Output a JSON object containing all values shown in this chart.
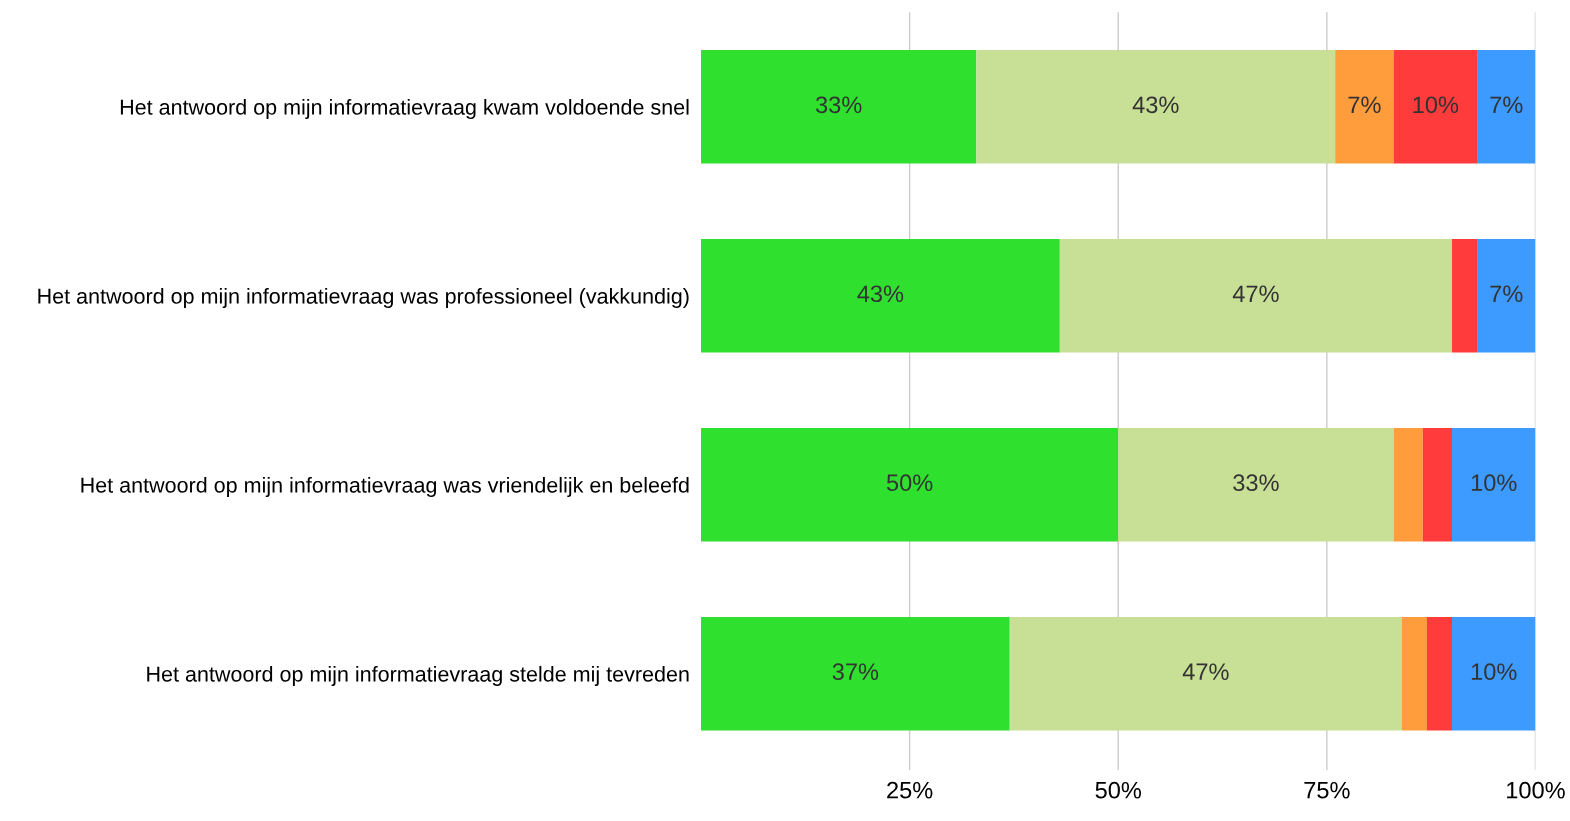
{
  "chart_data": {
    "type": "bar",
    "orientation": "horizontal",
    "stacked": true,
    "categories": [
      "Het antwoord op mijn informatievraag kwam voldoende snel",
      "Het antwoord op mijn informatievraag was professioneel (vakkundig)",
      "Het antwoord op mijn informatievraag was vriendelijk en beleefd",
      "Het antwoord op mijn informatievraag stelde mij tevreden"
    ],
    "series": [
      {
        "color": "#2fe02f",
        "values": [
          33,
          43,
          50,
          37
        ],
        "value_labels": [
          "33%",
          "43%",
          "50%",
          "37%"
        ]
      },
      {
        "color": "#c8df96",
        "values": [
          43,
          47,
          33,
          47
        ],
        "value_labels": [
          "43%",
          "47%",
          "33%",
          "47%"
        ]
      },
      {
        "color": "#ff9d3c",
        "values": [
          7,
          0,
          3.5,
          3
        ],
        "value_labels": [
          "7%",
          null,
          null,
          null
        ]
      },
      {
        "color": "#ff3b3b",
        "values": [
          10,
          3,
          3.5,
          3
        ],
        "value_labels": [
          "10%",
          null,
          null,
          null
        ]
      },
      {
        "color": "#3d9bff",
        "values": [
          7,
          7,
          10,
          10
        ],
        "value_labels": [
          "7%",
          "7%",
          "10%",
          "10%"
        ]
      }
    ],
    "xlim": [
      0,
      100
    ],
    "xticks": [
      {
        "value": 25,
        "label": "25%"
      },
      {
        "value": 50,
        "label": "50%"
      },
      {
        "value": 75,
        "label": "75%"
      },
      {
        "value": 100,
        "label": "100%"
      }
    ],
    "grid": "x",
    "legend": false
  }
}
